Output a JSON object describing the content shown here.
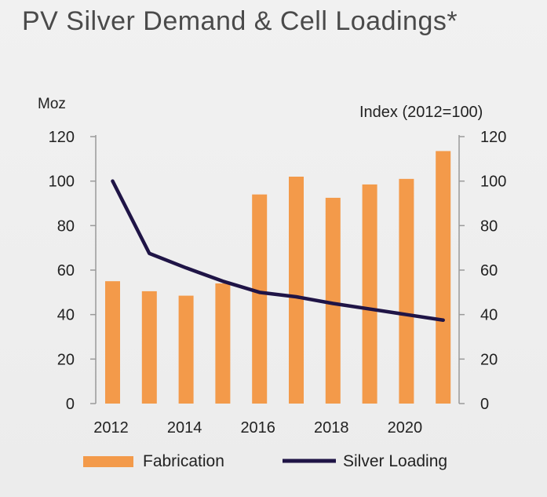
{
  "chart_data": {
    "type": "bar",
    "title": "PV Silver Demand & Cell Loadings*",
    "y_left_label": "Moz",
    "y_right_label": "Index (2012=100)",
    "x": [
      2012,
      2013,
      2014,
      2015,
      2016,
      2017,
      2018,
      2019,
      2020,
      2021
    ],
    "x_tick_labels": [
      "2012",
      "2014",
      "2016",
      "2018",
      "2020"
    ],
    "y_ticks": [
      "0",
      "20",
      "40",
      "60",
      "80",
      "100",
      "120"
    ],
    "ylim": [
      0,
      120
    ],
    "series": [
      {
        "name": "Fabrication",
        "type": "bar",
        "axis": "left",
        "color": "#f39a4a",
        "values": [
          55,
          50.5,
          48.5,
          54,
          94,
          102,
          92.5,
          98.5,
          101,
          113.5
        ]
      },
      {
        "name": "Silver Loading",
        "type": "line",
        "axis": "right",
        "color": "#1f1446",
        "values": [
          100,
          67.5,
          61,
          55,
          50,
          48,
          45,
          42.5,
          40,
          37.5
        ]
      }
    ],
    "legend_position": "bottom"
  }
}
